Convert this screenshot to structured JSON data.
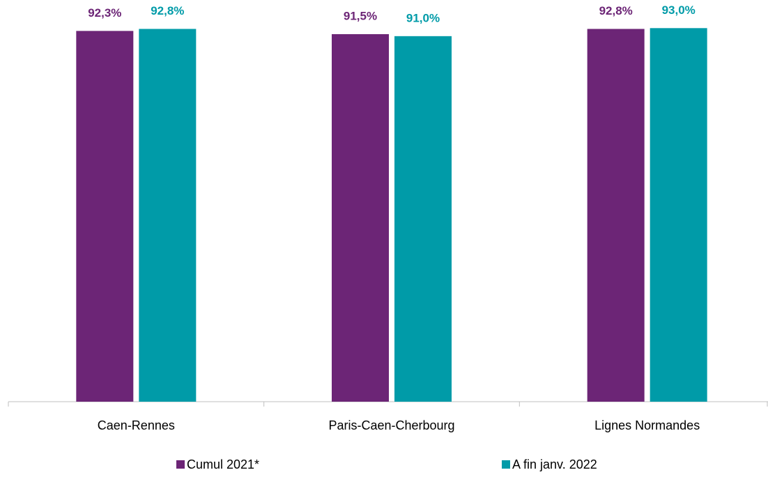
{
  "chart_data": {
    "type": "bar",
    "categories": [
      "Caen-Rennes",
      "Paris-Caen-Cherbourg",
      "Lignes Normandes"
    ],
    "series": [
      {
        "name": "Cumul 2021*",
        "color": "#6c2576",
        "values": [
          92.3,
          91.5,
          92.8
        ],
        "value_labels": [
          "92,3%",
          "91,5%",
          "92,8%"
        ]
      },
      {
        "name": "A fin janv. 2022",
        "color": "#009ba8",
        "values": [
          92.8,
          91.0,
          93.0
        ],
        "value_labels": [
          "92,8%",
          "91,0%",
          "93,0%"
        ]
      }
    ],
    "ylim": [
      0,
      100
    ]
  }
}
